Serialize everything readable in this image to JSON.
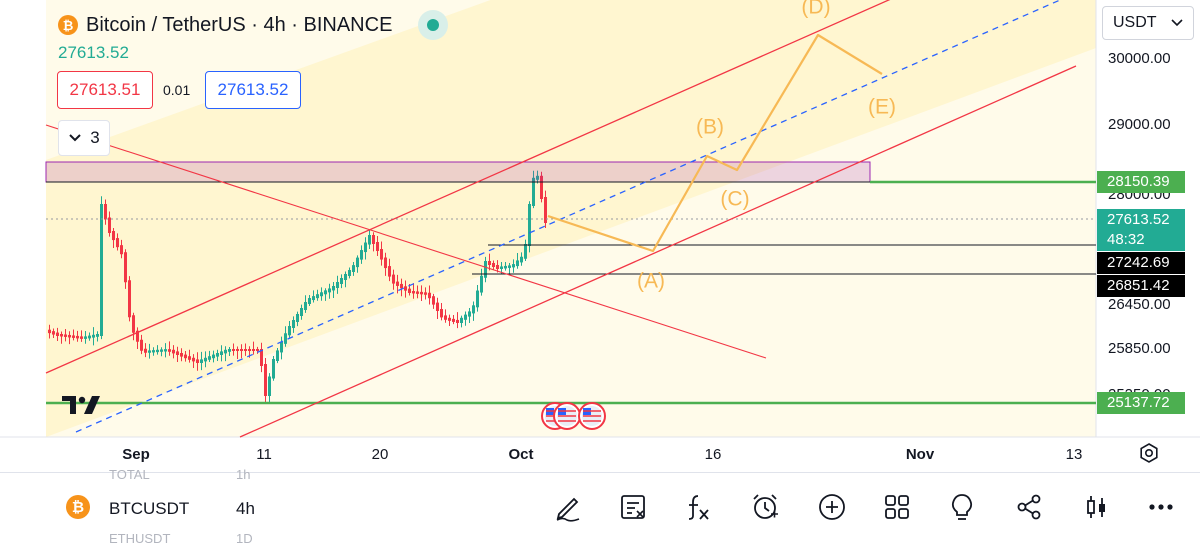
{
  "header": {
    "title": "Bitcoin / TetherUS · 4h · BINANCE",
    "coin_glyph": "₿",
    "last_price": "27613.52",
    "sell_price": "27613.51",
    "spread": "0.01",
    "buy_price": "27613.52",
    "indicators_count": "3"
  },
  "currency_select": {
    "value": "USDT"
  },
  "price_axis": {
    "labels": [
      "30000.00",
      "29000.00",
      "28000.00",
      "26450.00",
      "25850.00",
      "25250.00"
    ],
    "badges": [
      {
        "value": "28150.39",
        "color": "#4caf50"
      },
      {
        "value": "27613.52",
        "color": "#22ab94",
        "sub": "48:32"
      },
      {
        "value": "27242.69",
        "color": "#000000"
      },
      {
        "value": "26851.42",
        "color": "#000000"
      },
      {
        "value": "25137.72",
        "color": "#4caf50"
      }
    ]
  },
  "time_axis": {
    "labels": [
      "Sep",
      "11",
      "20",
      "Oct",
      "16",
      "Nov",
      "13"
    ]
  },
  "wave_labels": [
    "(A)",
    "(B)",
    "(C)",
    "(D)",
    "(E)"
  ],
  "colors": {
    "up": "#22ab94",
    "down": "#f23645",
    "channel": "#f23645",
    "wave": "#f7b955",
    "support": "#4caf50",
    "zone": "#9c27b0",
    "midline": "#2962ff"
  },
  "bottom_bar": {
    "symbol": "BTCUSDT",
    "interval": "4h",
    "ghost_above": [
      "TOTAL",
      "1h"
    ],
    "ghost_below": [
      "ETHUSDT",
      "1D"
    ],
    "tools": [
      "pencil-icon",
      "ideas-note-icon",
      "fx-icon",
      "alert-clock-icon",
      "add-icon",
      "grid-icon",
      "lightbulb-icon",
      "share-icon",
      "candles-icon",
      "more-icon"
    ]
  }
}
